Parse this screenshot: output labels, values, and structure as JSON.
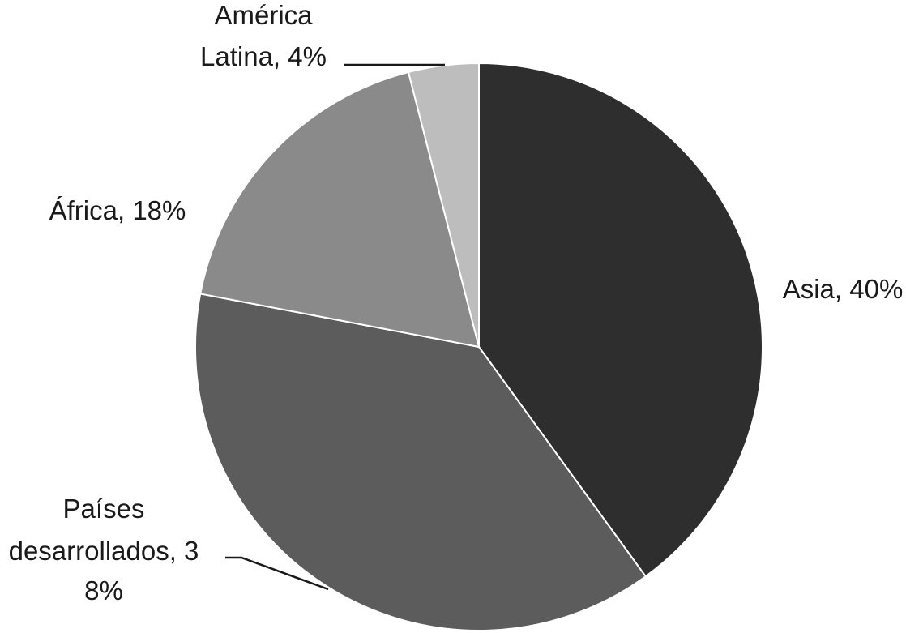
{
  "chart_data": {
    "type": "pie",
    "start_angle_deg": 0,
    "direction": "clockwise",
    "slices": [
      {
        "name": "Asia",
        "value": 40,
        "color": "#2e2e2e",
        "label_lines": [
          "Asia, 40%"
        ]
      },
      {
        "name": "Países desarrollados",
        "value": 38,
        "color": "#5c5c5c",
        "label_lines": [
          "Países",
          "desarrollados, 3",
          "8%"
        ]
      },
      {
        "name": "África",
        "value": 18,
        "color": "#8a8a8a",
        "label_lines": [
          "África, 18%"
        ]
      },
      {
        "name": "América Latina",
        "value": 4,
        "color": "#bdbdbd",
        "label_lines": [
          "América",
          "Latina, 4%"
        ]
      }
    ]
  }
}
